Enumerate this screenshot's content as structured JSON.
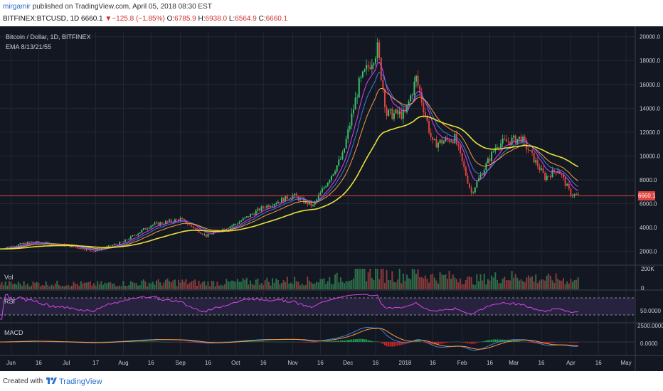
{
  "header": {
    "user": "mirgamir",
    "published": " published on TradingView.com, April 05, 2018 08:30 EST"
  },
  "quote": {
    "symbol": "BITFINEX:BTCUSD, 1D",
    "last": "6660.1",
    "change": "−125.8 (−1.85%)",
    "open_label": "O:",
    "open": "6785.9",
    "high_label": "H:",
    "high": "6938.0",
    "low_label": "L:",
    "low": "6564.9",
    "close_label": "C:",
    "close": "6660.1",
    "down_color": "#d32f2f"
  },
  "chart": {
    "instrument": "Bitcoin / Dollar, 1D, BITFINEX",
    "indicator": "EMA 8/13/21/55",
    "last_price_tag": "6660.1",
    "bull_color": "#3ec16b",
    "bear_color": "#e0443e"
  },
  "panes": {
    "vol_label": "Vol",
    "vol_tick": "200K",
    "vol_zero": "0",
    "rsi_label": "RSI",
    "rsi_tick": "50.0000",
    "macd_label": "MACD",
    "macd_tick_top": "2500.0000",
    "macd_tick_zero": "0.0000"
  },
  "footer": {
    "created_with": "Created with",
    "brand": "TradingView"
  },
  "chart_data": {
    "type": "candlestick",
    "y_ticks": [
      "2000.0",
      "4000.0",
      "6000.0",
      "8000.0",
      "10000.0",
      "12000.0",
      "14000.0",
      "16000.0",
      "18000.0",
      "20000.0"
    ],
    "x_ticks": [
      "Jun",
      "16",
      "Jul",
      "17",
      "Aug",
      "16",
      "Sep",
      "16",
      "Oct",
      "16",
      "Nov",
      "16",
      "Dec",
      "16",
      "2018",
      "16",
      "Feb",
      "16",
      "Mar",
      "16",
      "Apr",
      "16",
      "May"
    ],
    "price_path": [
      [
        "2017-05-26",
        2200
      ],
      [
        "2017-06-12",
        2800
      ],
      [
        "2017-07-01",
        2500
      ],
      [
        "2017-07-16",
        2000
      ],
      [
        "2017-08-01",
        2800
      ],
      [
        "2017-08-16",
        4200
      ],
      [
        "2017-09-01",
        4700
      ],
      [
        "2017-09-15",
        3300
      ],
      [
        "2017-10-01",
        4300
      ],
      [
        "2017-10-16",
        5700
      ],
      [
        "2017-11-01",
        6700
      ],
      [
        "2017-11-12",
        5800
      ],
      [
        "2017-11-28",
        10000
      ],
      [
        "2017-12-07",
        16000
      ],
      [
        "2017-12-17",
        19000
      ],
      [
        "2017-12-22",
        13500
      ],
      [
        "2018-01-01",
        13500
      ],
      [
        "2018-01-07",
        16500
      ],
      [
        "2018-01-16",
        11000
      ],
      [
        "2018-01-28",
        11500
      ],
      [
        "2018-02-06",
        6900
      ],
      [
        "2018-02-20",
        11000
      ],
      [
        "2018-03-05",
        11500
      ],
      [
        "2018-03-18",
        8200
      ],
      [
        "2018-03-25",
        8900
      ],
      [
        "2018-04-01",
        6800
      ],
      [
        "2018-04-05",
        6660
      ]
    ],
    "ema_paths": {
      "ema55": [
        [
          "2017-05-26",
          1800
        ],
        [
          "2017-08-01",
          2600
        ],
        [
          "2017-09-15",
          3700
        ],
        [
          "2017-11-12",
          5800
        ],
        [
          "2017-12-17",
          11000
        ],
        [
          "2018-01-16",
          13300
        ],
        [
          "2018-02-15",
          11800
        ],
        [
          "2018-03-15",
          10400
        ],
        [
          "2018-04-05",
          8900
        ]
      ],
      "ema21": [
        [
          "2017-05-26",
          2000
        ],
        [
          "2017-08-16",
          3300
        ],
        [
          "2017-09-20",
          3900
        ],
        [
          "2017-11-20",
          7000
        ],
        [
          "2017-12-20",
          15000
        ],
        [
          "2018-01-16",
          14000
        ],
        [
          "2018-02-10",
          9500
        ],
        [
          "2018-03-05",
          10300
        ],
        [
          "2018-04-05",
          7800
        ]
      ]
    },
    "grid": true,
    "last_price": 6660.1,
    "currency": "USD"
  }
}
